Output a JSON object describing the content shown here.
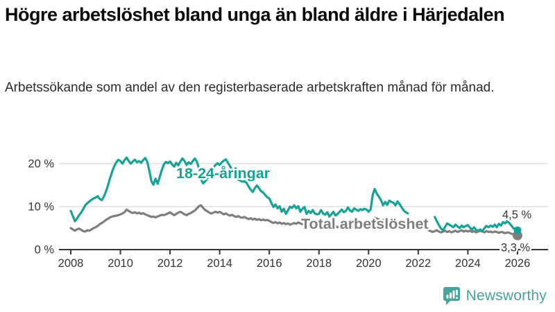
{
  "header": {
    "title": "Högre arbetslöshet bland unga än bland äldre i Härjedalen",
    "subtitle": "Arbetssökande som andel av den registerbaserade arbetskraften månad för månad."
  },
  "footer": {
    "brand": "Newsworthy",
    "logo_icon": "bar-chart-speech-bubble-icon",
    "brand_color": "#46a49c"
  },
  "chart_data": {
    "type": "line",
    "title": "Högre arbetslöshet bland unga än bland äldre i Härjedalen",
    "subtitle": "Arbetssökande som andel av den registerbaserade arbetskraften månad för månad.",
    "grid": "horizontal-only",
    "ylim": [
      0,
      24
    ],
    "xlim": [
      2007.9,
      2026.3
    ],
    "y_ticks": [
      {
        "value": 0,
        "label": "0 %"
      },
      {
        "value": 10,
        "label": "10 %"
      },
      {
        "value": 20,
        "label": "20 %"
      }
    ],
    "x_ticks": [
      {
        "value": 2008,
        "label": "2008"
      },
      {
        "value": 2010,
        "label": "2010"
      },
      {
        "value": 2012,
        "label": "2012"
      },
      {
        "value": 2014,
        "label": "2014"
      },
      {
        "value": 2016,
        "label": "2016"
      },
      {
        "value": 2018,
        "label": "2018"
      },
      {
        "value": 2020,
        "label": "2020"
      },
      {
        "value": 2022,
        "label": "2022"
      },
      {
        "value": 2024,
        "label": "2024"
      },
      {
        "value": 2026,
        "label": "2026"
      }
    ],
    "axis_color": "#333333",
    "gridline_color": "#d9d9d9",
    "note": "monthly data with a gap between late 2021 and 2022 due to statistics changeover",
    "series": [
      {
        "name": "Total arbetslöshet",
        "inline_label": "Total arbetslöshet",
        "color": "#7e7e7e",
        "end_label": "3,3 %",
        "end_value": 3.3,
        "segments": [
          {
            "start_year": 2008,
            "start_month": 1,
            "values": [
              5.0,
              4.7,
              4.4,
              4.7,
              4.9,
              4.6,
              4.3,
              4.2,
              4.5,
              4.4,
              4.7,
              5.0,
              5.2,
              5.5,
              5.9,
              6.2,
              6.5,
              6.9,
              7.2,
              7.5,
              7.7,
              7.8,
              7.9,
              8.0,
              8.2,
              8.4,
              8.7,
              9.3,
              9.0,
              8.7,
              8.5,
              8.7,
              8.4,
              8.6,
              8.3,
              8.5,
              8.2,
              8.0,
              7.8,
              7.6,
              7.7,
              7.5,
              7.7,
              7.9,
              8.1,
              8.0,
              8.2,
              8.4,
              8.7,
              8.3,
              8.0,
              8.3,
              8.6,
              8.8,
              8.5,
              8.2,
              8.0,
              8.3,
              8.5,
              8.8,
              9.1,
              9.6,
              10.1,
              10.3,
              9.7,
              9.2,
              8.9,
              8.6,
              8.4,
              8.6,
              8.8,
              8.6,
              8.8,
              8.5,
              8.2,
              8.4,
              8.1,
              7.9,
              8.1,
              7.8,
              7.6,
              7.8,
              7.5,
              7.4,
              7.6,
              7.3,
              7.1,
              7.3,
              7.0,
              7.2,
              6.9,
              7.1,
              6.8,
              7.0,
              6.8,
              6.9,
              6.7,
              6.4,
              6.2,
              6.4,
              6.1,
              6.3,
              6.0,
              6.2,
              5.9,
              6.1,
              5.8,
              6.0,
              6.2,
              6.0,
              6.3,
              6.1,
              5.9,
              6.1,
              5.8,
              6.0,
              5.7,
              5.9,
              5.6,
              5.8,
              5.7,
              5.9,
              5.6,
              5.5,
              5.7,
              5.4,
              5.6,
              5.3,
              5.5,
              5.2,
              5.4,
              5.3,
              5.4,
              5.2,
              5.5,
              5.3,
              5.2,
              5.4,
              5.1,
              5.3,
              5.2,
              5.4,
              5.3,
              5.5,
              5.6,
              5.8,
              6.9,
              7.4,
              7.2,
              7.0,
              6.8,
              6.9,
              6.7,
              6.8,
              6.6,
              6.7,
              6.6,
              6.4,
              6.5,
              6.3,
              6.2,
              6.1,
              6.2,
              6.0
            ]
          },
          {
            "start_year": 2022,
            "start_month": 6,
            "values": [
              4.5,
              4.3,
              4.1,
              4.3,
              4.5,
              4.2,
              4.0,
              4.2,
              4.4,
              4.1,
              4.3,
              4.0,
              4.2,
              4.4,
              4.1,
              4.3,
              4.5,
              4.2,
              4.4,
              4.2,
              4.4,
              4.1,
              4.3,
              4.0,
              4.2,
              4.4,
              4.2,
              4.0,
              4.3,
              4.1,
              4.2,
              4.0,
              4.2,
              4.1,
              3.9,
              4.1,
              4.0,
              3.8,
              4.0,
              3.9,
              3.7,
              3.6,
              3.4,
              3.3
            ]
          }
        ]
      },
      {
        "name": "18-24-åringar",
        "inline_label": "18-24-åringar",
        "color": "#16a294",
        "end_label": "4,5 %",
        "end_value": 4.5,
        "segments": [
          {
            "start_year": 2008,
            "start_month": 1,
            "values": [
              9.0,
              7.8,
              6.6,
              7.2,
              8.0,
              8.6,
              9.4,
              10.3,
              10.8,
              11.2,
              11.6,
              11.9,
              12.1,
              12.4,
              11.8,
              11.5,
              12.3,
              13.5,
              15.0,
              16.6,
              18.1,
              19.4,
              20.3,
              20.9,
              20.6,
              20.0,
              20.8,
              21.4,
              20.6,
              20.0,
              20.5,
              20.9,
              20.3,
              20.6,
              20.2,
              20.8,
              21.3,
              20.4,
              18.3,
              15.9,
              15.1,
              16.5,
              15.3,
              16.9,
              18.5,
              19.8,
              20.4,
              20.1,
              20.5,
              19.8,
              19.3,
              20.2,
              19.6,
              20.5,
              21.2,
              20.6,
              19.7,
              20.3,
              19.9,
              20.6,
              21.2,
              20.4,
              18.9,
              16.3,
              15.4,
              15.9,
              16.6,
              17.5,
              18.4,
              19.1,
              19.7,
              20.1,
              19.7,
              20.3,
              20.7,
              21.0,
              20.2,
              19.4,
              18.4,
              17.5,
              16.8,
              16.3,
              16.0,
              15.8,
              15.9,
              15.5,
              14.7,
              13.9,
              13.4,
              14.3,
              14.9,
              14.3,
              13.6,
              13.3,
              12.7,
              12.2,
              11.9,
              10.8,
              9.9,
              10.5,
              9.6,
              10.1,
              8.8,
              9.5,
              8.3,
              9.1,
              10.0,
              9.7,
              10.3,
              9.6,
              10.1,
              8.8,
              9.5,
              9.9,
              8.3,
              9.0,
              8.5,
              9.2,
              8.4,
              8.2,
              8.3,
              9.2,
              8.4,
              8.1,
              8.7,
              7.7,
              8.2,
              8.8,
              7.9,
              8.3,
              8.8,
              9.3,
              8.7,
              9.0,
              9.8,
              9.1,
              8.8,
              9.6,
              9.3,
              9.0,
              9.4,
              9.2,
              9.5,
              9.3,
              8.8,
              9.4,
              12.8,
              14.1,
              13.0,
              12.3,
              11.5,
              10.3,
              11.1,
              10.4,
              11.4,
              11.1,
              10.9,
              10.3,
              11.2,
              10.6,
              9.8,
              9.1,
              8.7,
              8.4
            ]
          },
          {
            "start_year": 2022,
            "start_month": 9,
            "values": [
              7.6,
              6.6,
              5.7,
              4.9,
              4.5,
              5.3,
              6.1,
              5.8,
              5.5,
              5.2,
              5.8,
              5.4,
              5.0,
              5.6,
              5.2,
              5.5,
              5.7,
              5.1,
              4.7,
              5.2,
              4.6,
              4.4,
              4.7,
              4.3,
              5.0,
              5.5,
              5.2,
              5.6,
              5.3,
              5.8,
              5.2,
              6.0,
              5.6,
              6.4,
              6.1,
              6.6,
              6.2,
              5.6,
              5.0,
              4.7,
              4.5
            ]
          }
        ]
      }
    ]
  }
}
